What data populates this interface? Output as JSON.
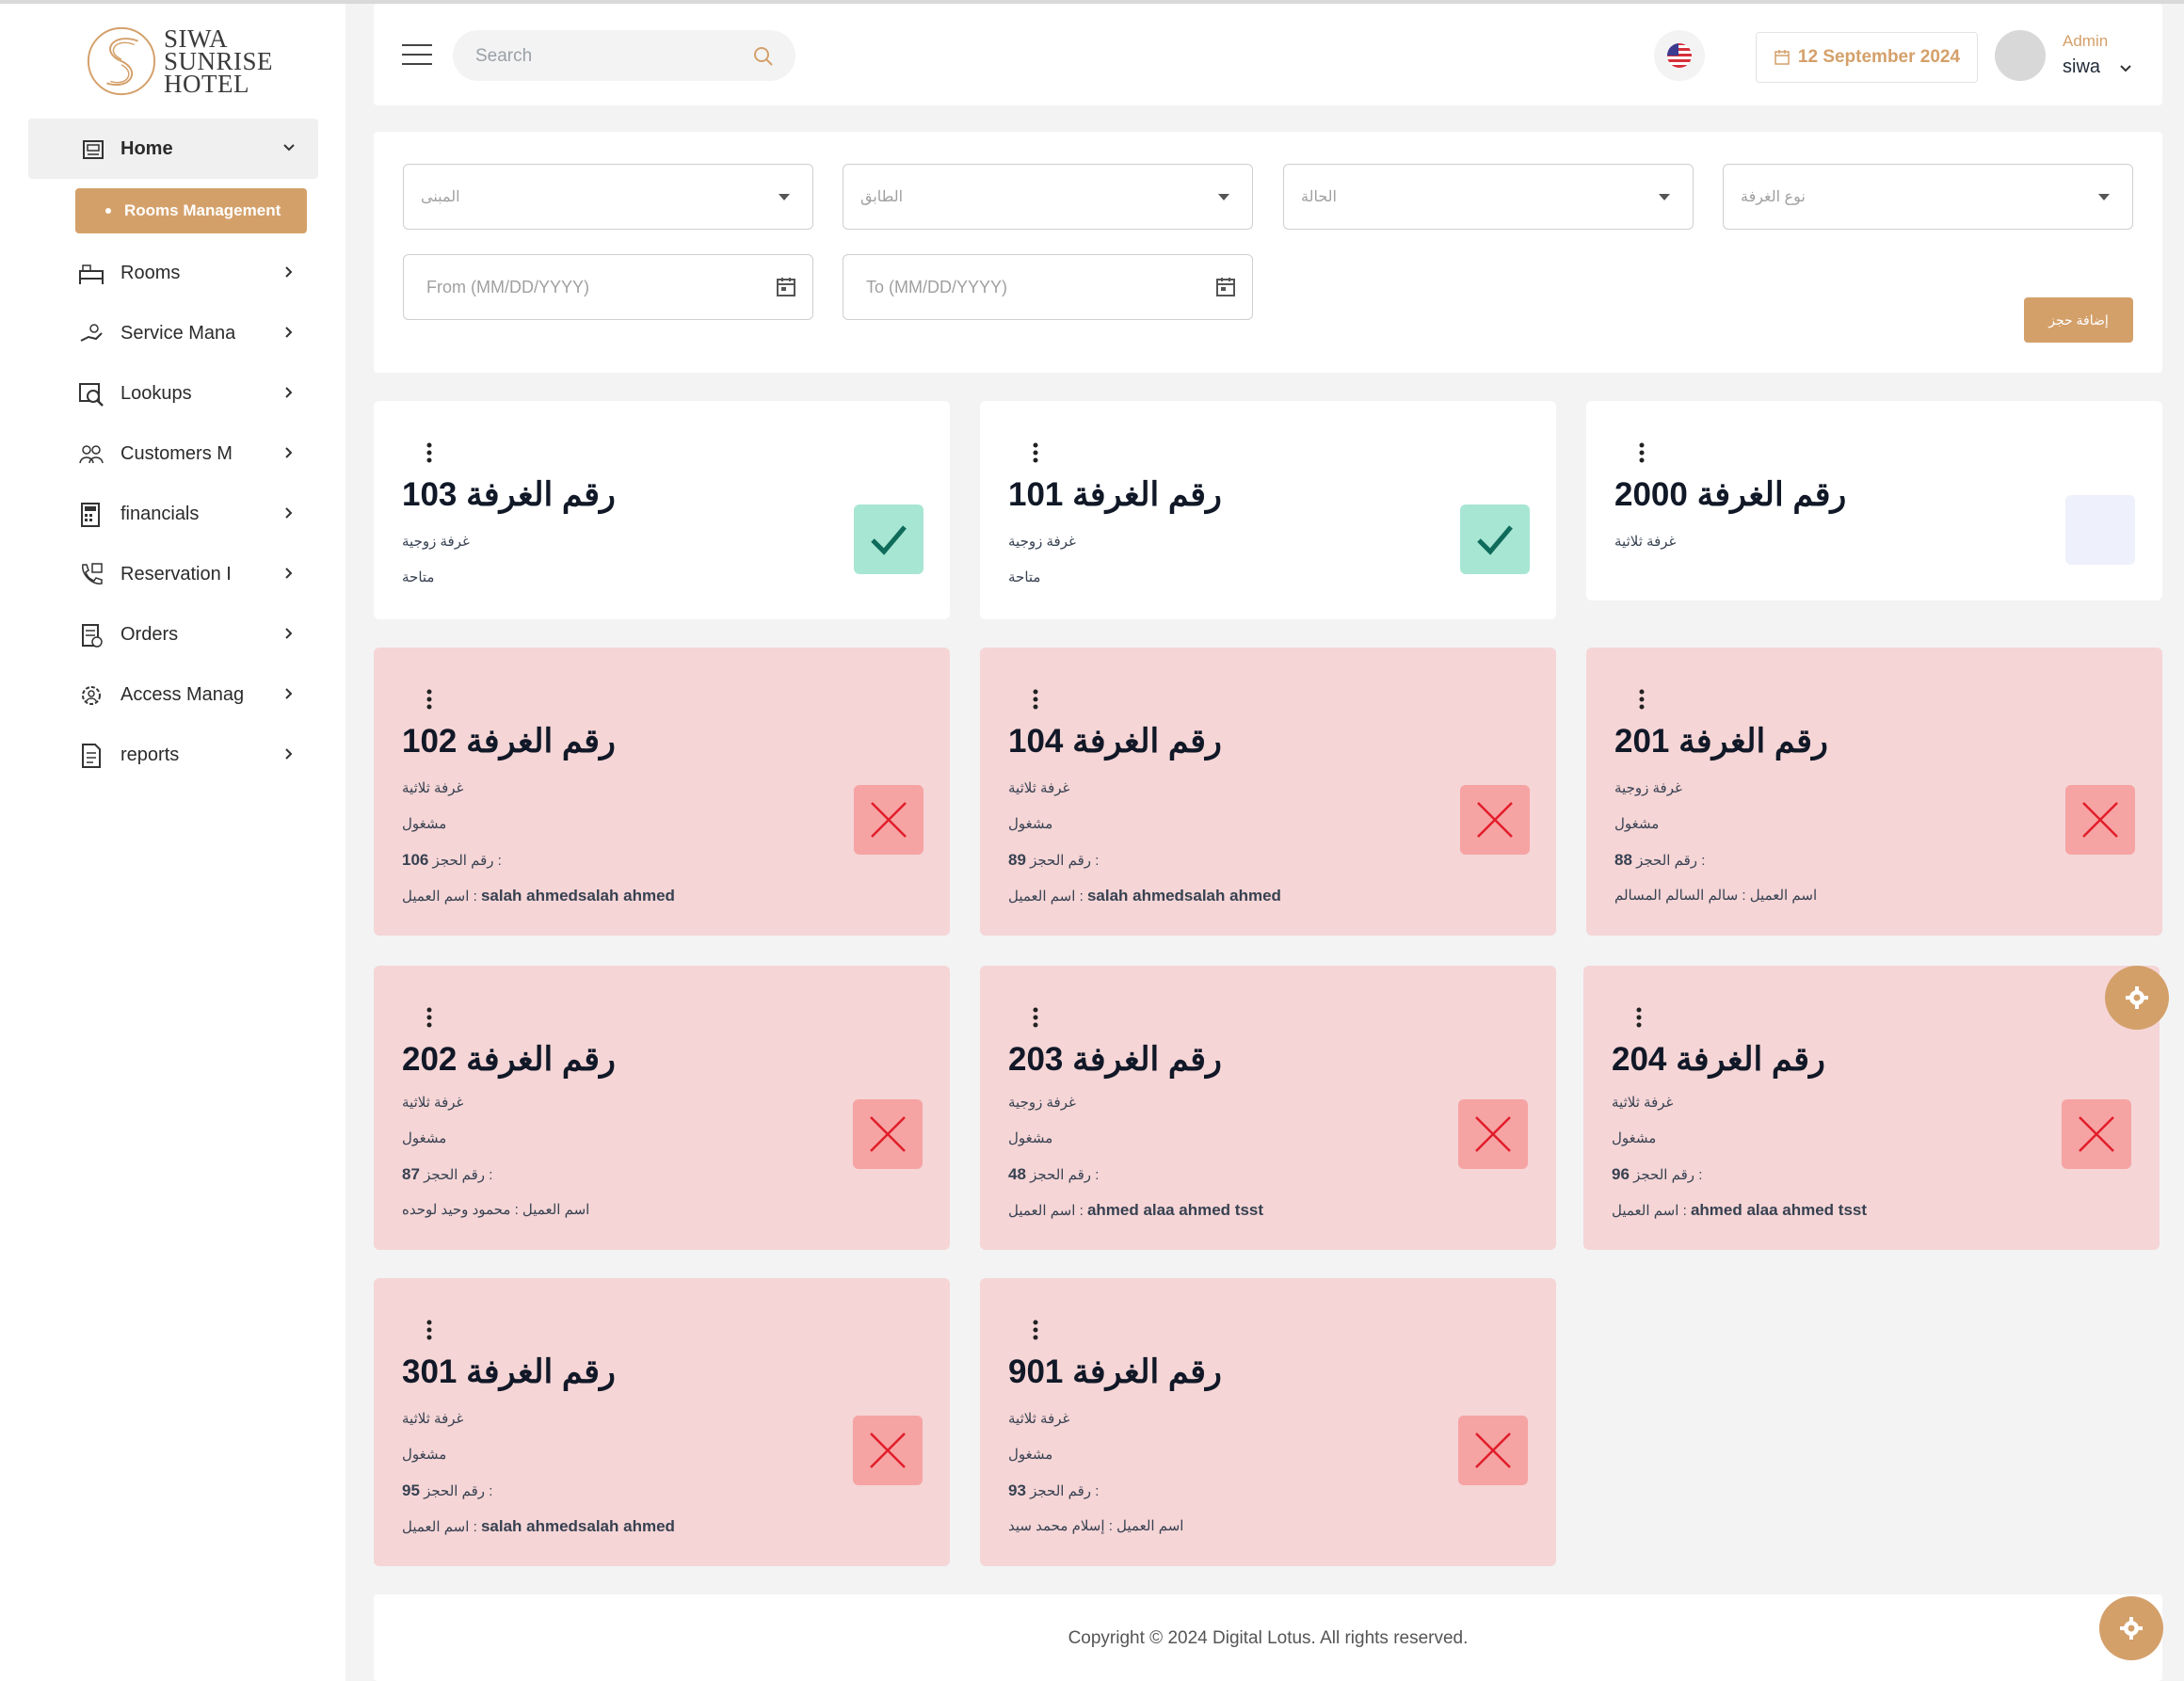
{
  "app": {
    "logo_lines": [
      "SIWA",
      "SUNRISE",
      "HOTEL"
    ]
  },
  "sidebar": {
    "items": [
      {
        "label": "Home",
        "icon": "home-icon"
      },
      {
        "label": "Rooms",
        "icon": "bed-icon"
      },
      {
        "label": "Service Mana",
        "icon": "service-hand-icon"
      },
      {
        "label": "Lookups",
        "icon": "lookup-icon"
      },
      {
        "label": "Customers M",
        "icon": "customers-icon"
      },
      {
        "label": "financials",
        "icon": "calculator-icon"
      },
      {
        "label": "Reservation I",
        "icon": "reservation-phone-icon"
      },
      {
        "label": "Orders",
        "icon": "orders-icon"
      },
      {
        "label": "Access Manag",
        "icon": "access-gear-icon"
      },
      {
        "label": "reports",
        "icon": "report-icon"
      }
    ],
    "active_sub": "Rooms Management"
  },
  "header": {
    "search_placeholder": "Search",
    "date": "12 September 2024",
    "user_role": "Admin",
    "user_name": "siwa"
  },
  "filters": {
    "building": "المبنى",
    "floor": "الطابق",
    "status": "الحالة",
    "room_type": "نوع الغرفة",
    "from_placeholder": "From (MM/DD/YYYY)",
    "to_placeholder": "To (MM/DD/YYYY)",
    "add_button": "إضافة حجز"
  },
  "cards": [
    {
      "title": "رقم الغرفة 103",
      "type": "غرفة زوجية",
      "status": "متاحة",
      "state": "available"
    },
    {
      "title": "رقم الغرفة 101",
      "type": "غرفة زوجية",
      "status": "متاحة",
      "state": "available"
    },
    {
      "title": "رقم الغرفة 2000",
      "type": "غرفة ثلاثية",
      "status": "",
      "state": "none"
    },
    {
      "title": "رقم الغرفة 102",
      "type": "غرفة ثلاثية",
      "status": "مشغول",
      "booking_label": "رقم الحجز :",
      "booking": "106",
      "client_label": "اسم العميل :",
      "client": "salah ahmedsalah ahmed",
      "state": "occupied"
    },
    {
      "title": "رقم الغرفة 104",
      "type": "غرفة ثلاثية",
      "status": "مشغول",
      "booking_label": "رقم الحجز :",
      "booking": "89",
      "client_label": "اسم العميل :",
      "client": "salah ahmedsalah ahmed",
      "state": "occupied"
    },
    {
      "title": "رقم الغرفة 201",
      "type": "غرفة زوجية",
      "status": "مشغول",
      "booking_label": "رقم الحجز :",
      "booking": "88",
      "client_label": "اسم العميل :",
      "client": "سالم السالم المسالم",
      "state": "occupied"
    },
    {
      "title": "رقم الغرفة 202",
      "type": "غرفة ثلاثية",
      "status": "مشغول",
      "booking_label": "رقم الحجز :",
      "booking": "87",
      "client_label": "اسم العميل :",
      "client": "محمود وحيد لوحده",
      "state": "occupied"
    },
    {
      "title": "رقم الغرفة 203",
      "type": "غرفة زوجية",
      "status": "مشغول",
      "booking_label": "رقم الحجز :",
      "booking": "48",
      "client_label": "اسم العميل :",
      "client": "ahmed alaa ahmed tsst",
      "state": "occupied"
    },
    {
      "title": "رقم الغرفة 204",
      "type": "غرفة ثلاثية",
      "status": "مشغول",
      "booking_label": "رقم الحجز :",
      "booking": "96",
      "client_label": "اسم العميل :",
      "client": "ahmed alaa ahmed tsst",
      "state": "occupied"
    },
    {
      "title": "رقم الغرفة 301",
      "type": "غرفة ثلاثية",
      "status": "مشغول",
      "booking_label": "رقم الحجز :",
      "booking": "95",
      "client_label": "اسم العميل :",
      "client": "salah ahmedsalah ahmed",
      "state": "occupied"
    },
    {
      "title": "رقم الغرفة 901",
      "type": "غرفة ثلاثية",
      "status": "مشغول",
      "booking_label": "رقم الحجز :",
      "booking": "93",
      "client_label": "اسم العميل :",
      "client": "إسلام محمد سيد",
      "state": "occupied"
    }
  ],
  "footer": {
    "copyright": "Copyright © 2024 Digital Lotus. All rights reserved."
  },
  "colors": {
    "accent": "#d4a06a",
    "occupied_bg": "#f5d5d6",
    "available_badge": "#a8e6d4",
    "occupied_badge": "#f6a3a3"
  }
}
